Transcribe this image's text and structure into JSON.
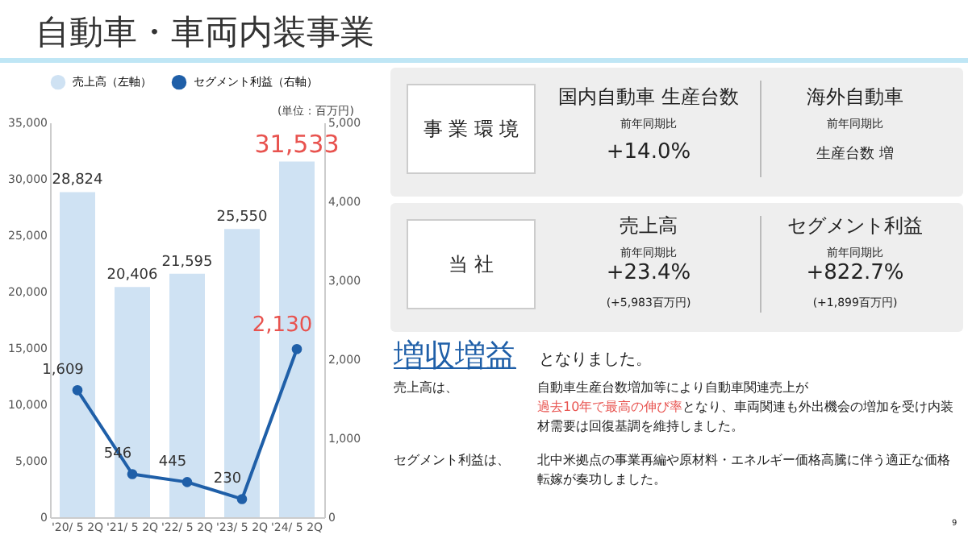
{
  "chart_data": [
    {
      "type": "bar",
      "title": "自動車・車両内装事業",
      "categories": [
        "'20/ 5 2Q",
        "'21/ 5 2Q",
        "'22/ 5 2Q",
        "'23/ 5 2Q",
        "'24/ 5 2Q"
      ],
      "series": [
        {
          "name": "売上高（左軸）",
          "color": "#cfe2f3",
          "values": [
            28824,
            20406,
            21595,
            25550,
            31533
          ],
          "value_labels": [
            "28,824",
            "20,406",
            "21,595",
            "25,550",
            "31,533"
          ]
        },
        {
          "name": "セグメント利益（右軸）",
          "type": "line",
          "axis": "y2",
          "color": "#1f5fa8",
          "values": [
            1609,
            546,
            445,
            230,
            2130
          ],
          "value_labels": [
            "1,609",
            "546",
            "445",
            "230",
            "2,130"
          ]
        }
      ],
      "ylim": [
        0,
        35000
      ],
      "yticks": [
        0,
        {
          "value": 5000,
          "label": "5,000"
        },
        {
          "value": 10000,
          "label": "10,000"
        },
        {
          "value": 15000,
          "label": "15,000"
        },
        {
          "value": 20000,
          "label": "20,000"
        },
        {
          "value": 25000,
          "label": "25,000"
        },
        {
          "value": 30000,
          "label": "30,000"
        },
        {
          "value": 35000,
          "label": "35,000"
        }
      ],
      "y2lim": [
        0,
        5000
      ],
      "y2ticks": [
        0,
        {
          "value": 1000,
          "label": "1,000"
        },
        {
          "value": 2000,
          "label": "2,000"
        },
        {
          "value": 3000,
          "label": "3,000"
        },
        {
          "value": 4000,
          "label": "4,000"
        },
        {
          "value": 5000,
          "label": "5,000"
        }
      ],
      "legend": "top left",
      "marker": "circle",
      "line_style": "solid",
      "annotations": [
        "(単位：百万円)"
      ]
    },
    {
      "type": "other",
      "annotations": [
        "事 業 環 境",
        "国内自動車 生産台数",
        "前年同期比",
        "+14.0%",
        "海外自動車",
        "前年同期比",
        "生産台数 増",
        "当 社",
        "売上高",
        "前年同期比",
        "+23.4%",
        "(+5,983百万円)",
        "セグメント利益",
        "前年同期比",
        "+822.7%",
        "(+1,899百万円)",
        "増収増益",
        "となりました。",
        "売上高は、",
        "自動車生産台数増加等により自動車関連売上が",
        "過去10年で最高の伸び率",
        "となり、車両関連も外出機会の増加を受け内装材需要は回復基調を維持しました。",
        "セグメント利益は、",
        "北中米拠点の事業再編や原材料・エネルギー価格高騰に伴う適正な価格転嫁が奏功しました。",
        "9"
      ]
    }
  ]
}
